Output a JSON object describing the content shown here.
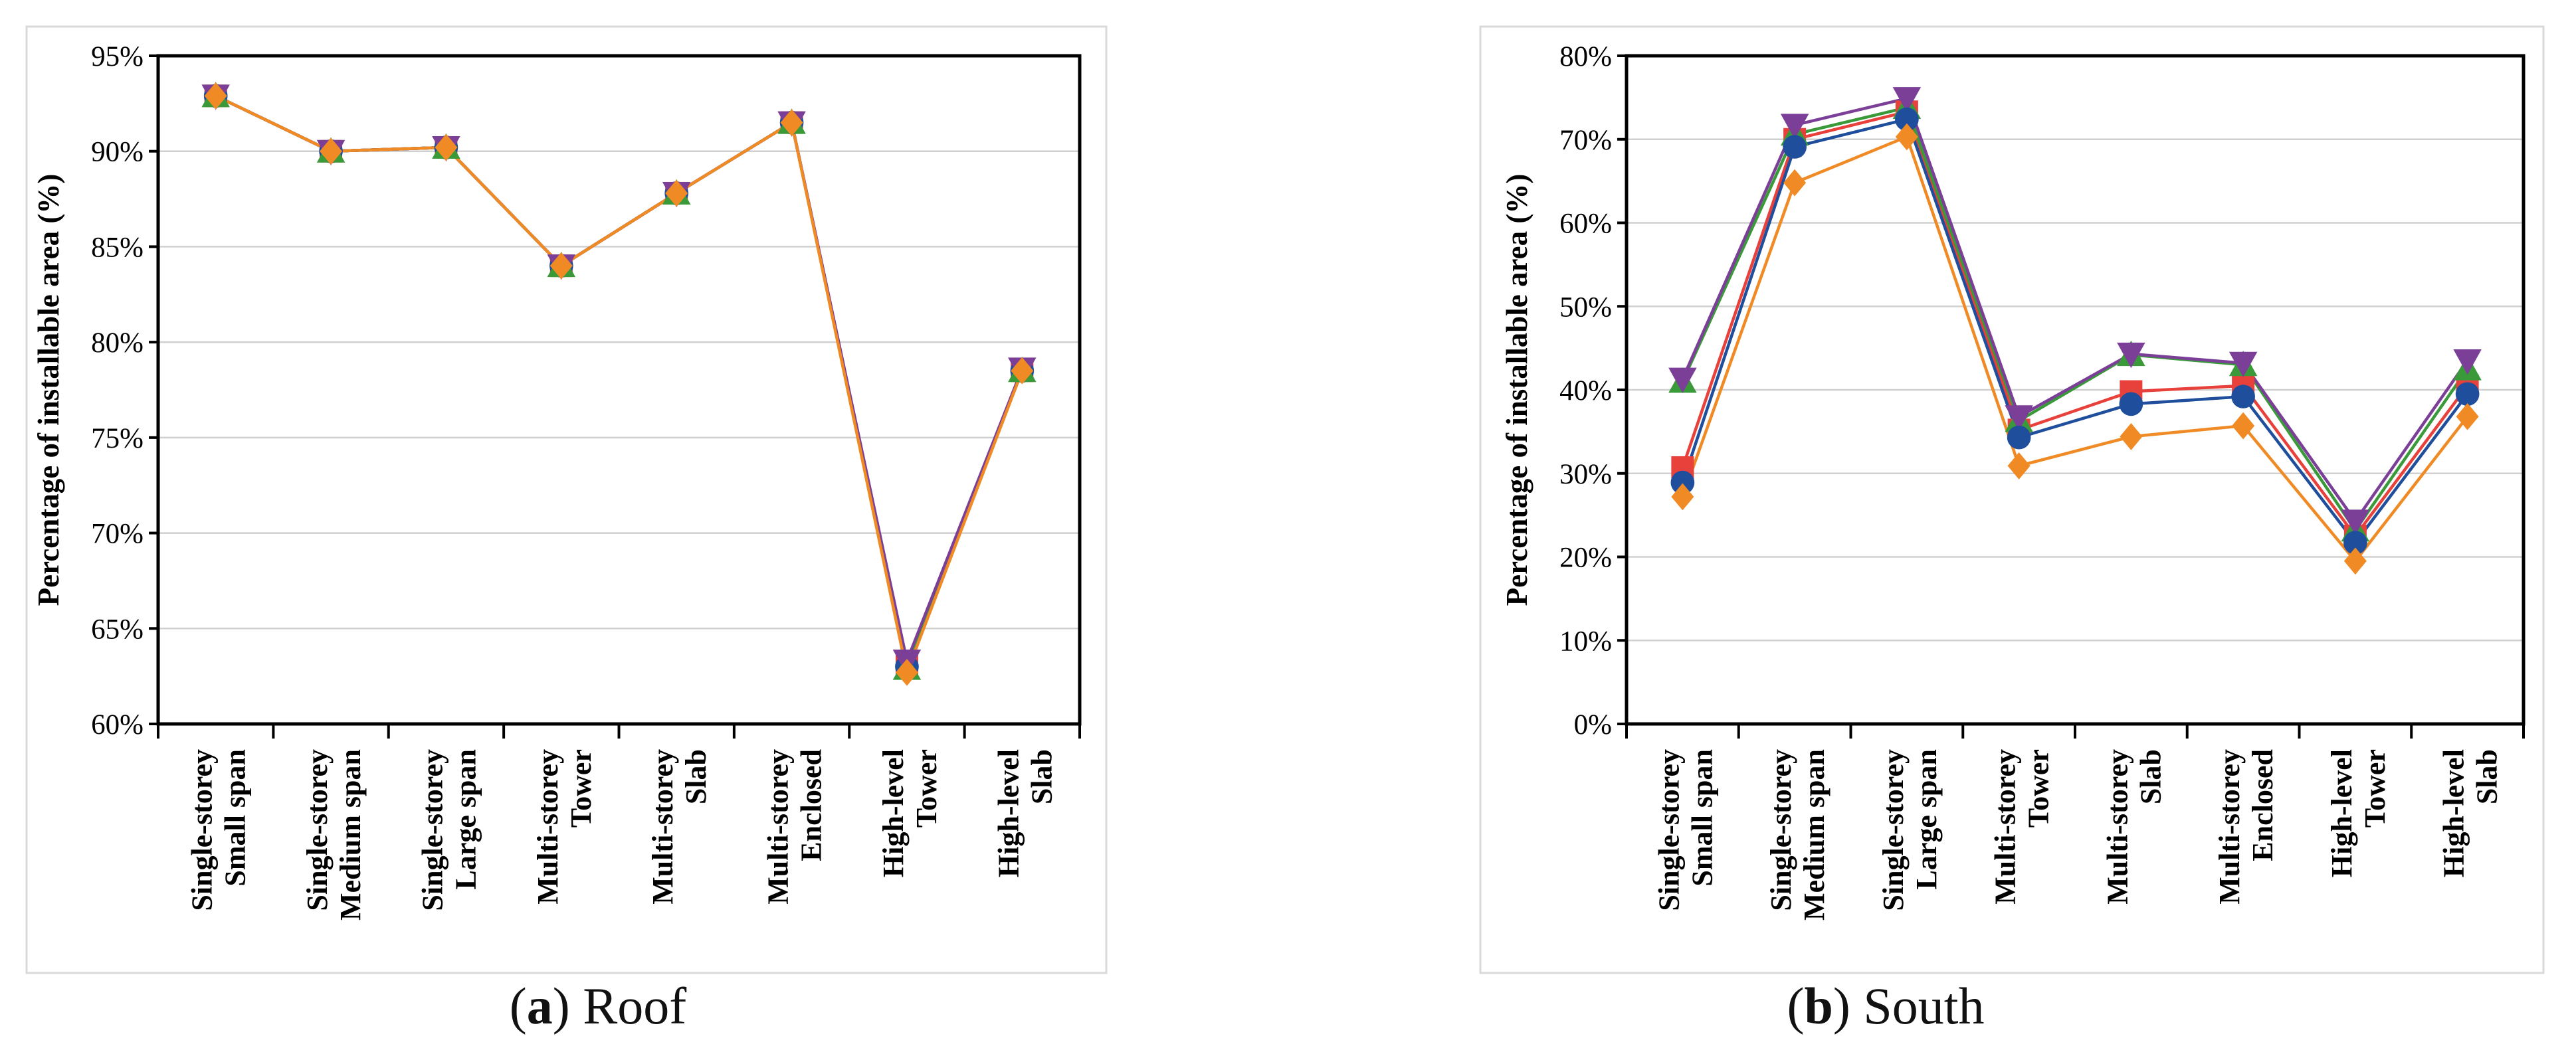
{
  "chart_data": [
    {
      "id": "roof",
      "type": "line",
      "caption_letter": "a",
      "caption_text": "Roof",
      "ylabel": "Percentage of installable area (%)",
      "xlabel": "",
      "ylim": [
        60,
        95
      ],
      "yticks": [
        60,
        65,
        70,
        75,
        80,
        85,
        90,
        95
      ],
      "ytick_labels": [
        "60%",
        "65%",
        "70%",
        "75%",
        "80%",
        "85%",
        "90%",
        "95%"
      ],
      "grid": true,
      "categories": [
        {
          "line1": "Single-storey",
          "line2": "Small span"
        },
        {
          "line1": "Single-storey",
          "line2": "Medium span"
        },
        {
          "line1": "Single-storey",
          "line2": "Large span"
        },
        {
          "line1": "Multi-storey",
          "line2": "Tower"
        },
        {
          "line1": "Multi-storey",
          "line2": "Slab"
        },
        {
          "line1": "Multi-storey",
          "line2": "Enclosed"
        },
        {
          "line1": "High-level",
          "line2": "Tower"
        },
        {
          "line1": "High-level",
          "line2": "Slab"
        }
      ],
      "series": [
        {
          "marker": "square",
          "color": "#e8413c",
          "values": [
            92.9,
            90.0,
            90.2,
            84.0,
            87.8,
            91.5,
            63.1,
            78.5
          ]
        },
        {
          "marker": "circle",
          "color": "#1f4e9c",
          "values": [
            92.9,
            90.0,
            90.2,
            84.0,
            87.8,
            91.5,
            63.0,
            78.5
          ]
        },
        {
          "marker": "triangle-up",
          "color": "#3a9a3a",
          "values": [
            92.9,
            90.0,
            90.2,
            84.0,
            87.8,
            91.5,
            62.9,
            78.5
          ]
        },
        {
          "marker": "triangle-down",
          "color": "#7b3f98",
          "values": [
            92.9,
            90.0,
            90.2,
            84.0,
            87.8,
            91.5,
            63.3,
            78.6
          ]
        },
        {
          "marker": "diamond",
          "color": "#f08a24",
          "values": [
            92.9,
            90.0,
            90.2,
            84.0,
            87.8,
            91.5,
            62.7,
            78.5
          ]
        }
      ]
    },
    {
      "id": "south",
      "type": "line",
      "caption_letter": "b",
      "caption_text": "South",
      "ylabel": "Percentage of installable area (%)",
      "xlabel": "",
      "ylim": [
        0,
        80
      ],
      "yticks": [
        0,
        10,
        20,
        30,
        40,
        50,
        60,
        70,
        80
      ],
      "ytick_labels": [
        "0%",
        "10%",
        "20%",
        "30%",
        "40%",
        "50%",
        "60%",
        "70%",
        "80%"
      ],
      "grid": true,
      "categories": [
        {
          "line1": "Single-storey",
          "line2": "Small span"
        },
        {
          "line1": "Single-storey",
          "line2": "Medium span"
        },
        {
          "line1": "Single-storey",
          "line2": "Large span"
        },
        {
          "line1": "Multi-storey",
          "line2": "Tower"
        },
        {
          "line1": "Multi-storey",
          "line2": "Slab"
        },
        {
          "line1": "Multi-storey",
          "line2": "Enclosed"
        },
        {
          "line1": "High-level",
          "line2": "Tower"
        },
        {
          "line1": "High-level",
          "line2": "Slab"
        }
      ],
      "series": [
        {
          "marker": "square",
          "color": "#e8413c",
          "values": [
            30.7,
            70.0,
            73.3,
            35.2,
            39.8,
            40.5,
            22.5,
            40.5
          ]
        },
        {
          "marker": "triangle-up",
          "color": "#3a9a3a",
          "values": [
            41.0,
            70.6,
            73.8,
            36.3,
            44.2,
            43.0,
            23.2,
            42.5
          ]
        },
        {
          "marker": "triangle-down",
          "color": "#7b3f98",
          "values": [
            41.3,
            71.7,
            74.9,
            36.8,
            44.3,
            43.2,
            24.3,
            43.5
          ]
        },
        {
          "marker": "circle",
          "color": "#1f4e9c",
          "values": [
            28.9,
            69.1,
            72.4,
            34.3,
            38.3,
            39.2,
            21.7,
            39.5
          ]
        },
        {
          "marker": "diamond",
          "color": "#f08a24",
          "values": [
            27.2,
            64.8,
            70.3,
            30.9,
            34.4,
            35.7,
            19.5,
            36.8
          ]
        }
      ]
    }
  ]
}
